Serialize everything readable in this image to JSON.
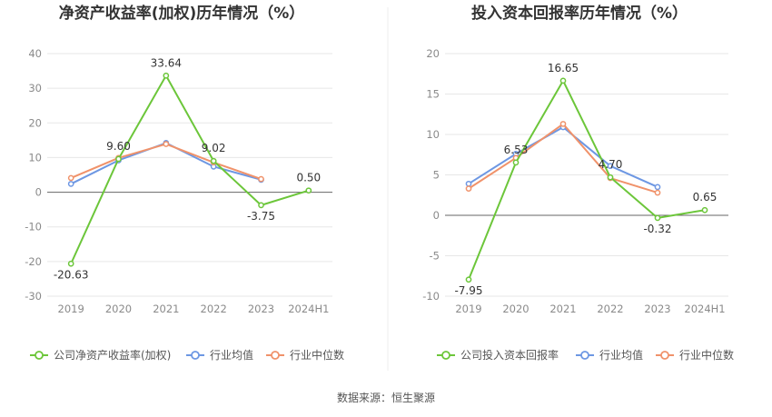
{
  "colors": {
    "company": "#6cc63a",
    "avg": "#6d97e3",
    "median": "#f0926a",
    "grid": "#e7e7e7",
    "axis": "#666666"
  },
  "footer": {
    "source": "数据来源：恒生聚源"
  },
  "chart_data": [
    {
      "type": "line",
      "title": "净资产收益率(加权)历年情况（%）",
      "categories": [
        "2019",
        "2020",
        "2021",
        "2022",
        "2023",
        "2024H1"
      ],
      "ylim": [
        -30,
        40
      ],
      "yticks": [
        -30,
        -20,
        -10,
        0,
        10,
        20,
        30,
        40
      ],
      "grid": true,
      "legend_position": "bottom",
      "series": [
        {
          "name": "公司净资产收益率(加权)",
          "color_key": "company",
          "values": [
            -20.63,
            9.6,
            33.64,
            9.02,
            -3.75,
            0.5
          ],
          "labels": [
            "-20.63",
            "9.60",
            "33.64",
            "9.02",
            "-3.75",
            "0.50"
          ]
        },
        {
          "name": "行业均值",
          "color_key": "avg",
          "values": [
            2.4,
            9.2,
            14.2,
            7.4,
            3.6,
            null
          ]
        },
        {
          "name": "行业中位数",
          "color_key": "median",
          "values": [
            4.1,
            9.9,
            13.9,
            8.6,
            3.8,
            null
          ]
        }
      ]
    },
    {
      "type": "line",
      "title": "投入资本回报率历年情况（%）",
      "categories": [
        "2019",
        "2020",
        "2021",
        "2022",
        "2023",
        "2024H1"
      ],
      "ylim": [
        -10,
        20
      ],
      "yticks": [
        -10,
        -5,
        0,
        5,
        10,
        15,
        20
      ],
      "grid": true,
      "legend_position": "bottom",
      "series": [
        {
          "name": "公司投入资本回报率",
          "color_key": "company",
          "values": [
            -7.95,
            6.53,
            16.65,
            4.7,
            -0.32,
            0.65
          ],
          "labels": [
            "-7.95",
            "6.53",
            "16.65",
            "4.70",
            "-0.32",
            "0.65"
          ]
        },
        {
          "name": "行业均值",
          "color_key": "avg",
          "values": [
            3.9,
            7.6,
            10.9,
            6.1,
            3.5,
            null
          ]
        },
        {
          "name": "行业中位数",
          "color_key": "median",
          "values": [
            3.3,
            7.1,
            11.3,
            4.6,
            2.8,
            null
          ]
        }
      ]
    }
  ]
}
